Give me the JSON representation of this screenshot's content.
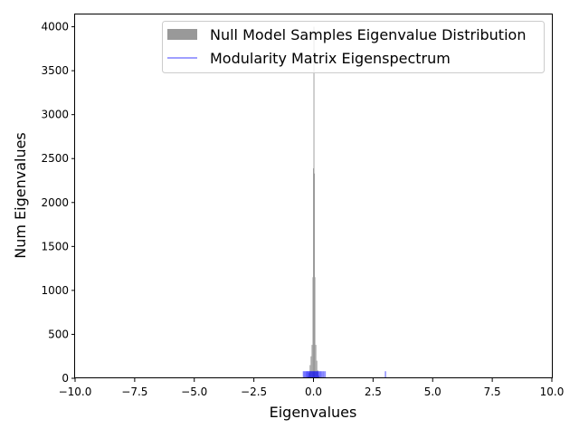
{
  "chart_data": {
    "type": "bar",
    "xlabel": "Eigenvalues",
    "ylabel": "Num Eigenvalues",
    "xlim": [
      -10,
      10
    ],
    "ylim": [
      0,
      4150
    ],
    "xticks": [
      "−10.0",
      "−7.5",
      "−5.0",
      "−2.5",
      "0.0",
      "2.5",
      "5.0",
      "7.5",
      "10.0"
    ],
    "xtick_values": [
      -10,
      -7.5,
      -5,
      -2.5,
      0,
      2.5,
      5,
      7.5,
      10
    ],
    "yticks": [
      "0",
      "500",
      "1000",
      "1500",
      "2000",
      "2500",
      "3000",
      "3500",
      "4000"
    ],
    "ytick_values": [
      0,
      500,
      1000,
      1500,
      2000,
      2500,
      3000,
      3500,
      4000
    ],
    "grid": false,
    "legend_position": "top-right",
    "histogram": {
      "name": "Null Model Samples Eigenvalue Distribution",
      "color": "#999999",
      "bins": [
        {
          "x": -0.22,
          "count": 20
        },
        {
          "x": -0.18,
          "count": 60
        },
        {
          "x": -0.14,
          "count": 150
        },
        {
          "x": -0.1,
          "count": 250
        },
        {
          "x": -0.06,
          "count": 380
        },
        {
          "x": -0.02,
          "count": 1150
        },
        {
          "x": 0.0,
          "count": 2390
        },
        {
          "x": 0.02,
          "count": 4000
        },
        {
          "x": 0.04,
          "count": 2330
        },
        {
          "x": 0.06,
          "count": 1150
        },
        {
          "x": 0.1,
          "count": 380
        },
        {
          "x": 0.14,
          "count": 200
        },
        {
          "x": 0.18,
          "count": 90
        },
        {
          "x": 0.22,
          "count": 30
        }
      ]
    },
    "spectrum": {
      "name": "Modularity Matrix Eigenspectrum",
      "color": "#0000ff",
      "eigenvalues": [
        -0.42,
        -0.38,
        -0.34,
        -0.3,
        -0.27,
        -0.24,
        -0.21,
        -0.18,
        -0.15,
        -0.12,
        -0.09,
        -0.06,
        -0.03,
        0.0,
        0.03,
        0.06,
        0.09,
        0.12,
        0.15,
        0.18,
        0.21,
        0.25,
        0.29,
        0.33,
        0.38,
        0.43,
        0.49,
        3.02
      ],
      "tick_height": 80
    }
  }
}
